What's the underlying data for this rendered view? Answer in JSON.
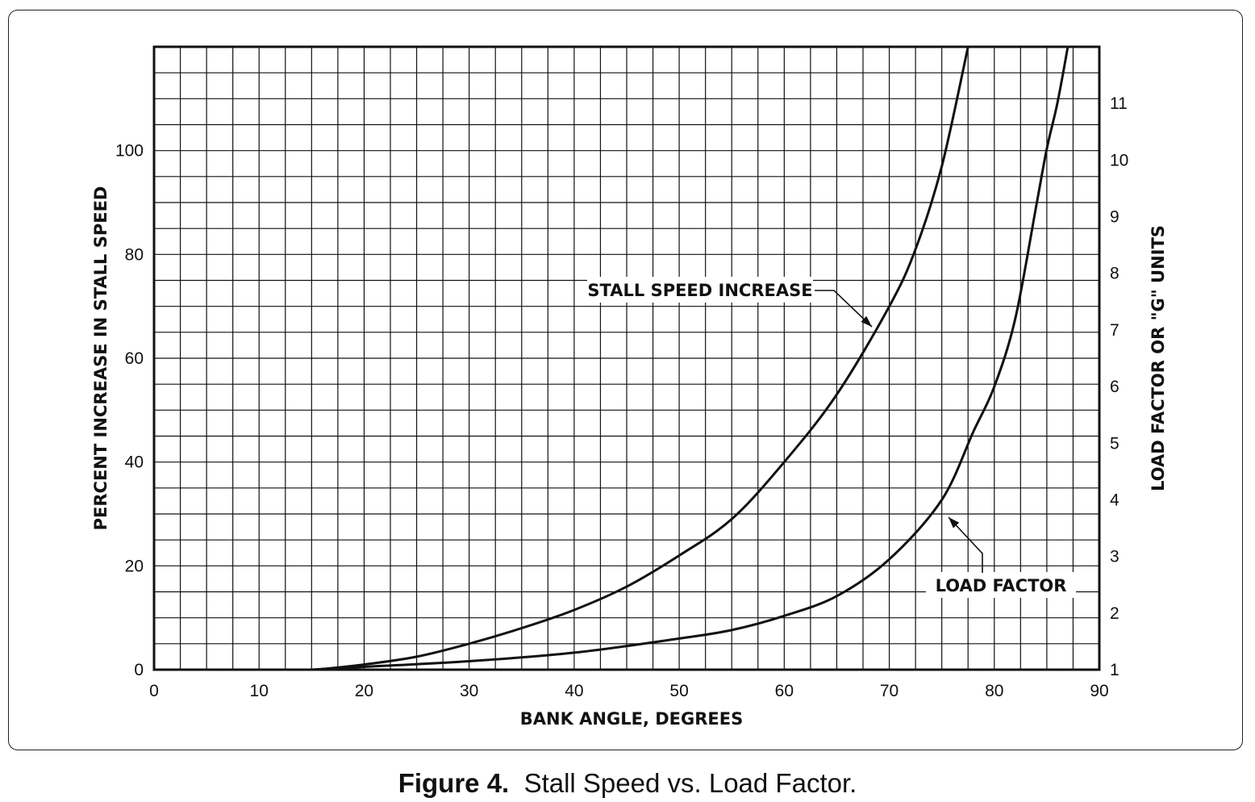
{
  "caption": {
    "label": "Figure 4.",
    "text": "Stall Speed vs. Load Factor."
  },
  "chart_data": {
    "type": "line",
    "x_axis": {
      "label": "BANK ANGLE, DEGREES",
      "range": [
        0,
        90
      ],
      "ticks": [
        "0",
        "10",
        "20",
        "30",
        "40",
        "50",
        "60",
        "70",
        "80",
        "90"
      ]
    },
    "y_axis_left": {
      "label": "PERCENT INCREASE IN STALL SPEED",
      "range": [
        0,
        120
      ],
      "ticks": [
        "0",
        "20",
        "40",
        "60",
        "80",
        "100"
      ]
    },
    "y_axis_right": {
      "label": "LOAD FACTOR OR \"G\" UNITS",
      "range": [
        1,
        12
      ],
      "ticks": [
        "1",
        "2",
        "3",
        "4",
        "5",
        "6",
        "7",
        "8",
        "9",
        "10",
        "11"
      ]
    },
    "grid": true,
    "series": [
      {
        "name": "STALL SPEED INCREASE",
        "axis": "left",
        "x": [
          0,
          10,
          15,
          20,
          25,
          30,
          35,
          40,
          45,
          50,
          55,
          60,
          65,
          70,
          72.5,
          75,
          77.5
        ],
        "y": [
          0,
          0,
          0,
          1,
          2.5,
          5,
          8,
          11.5,
          16,
          22,
          29,
          40,
          53,
          70,
          81,
          97,
          120
        ]
      },
      {
        "name": "LOAD FACTOR",
        "axis": "right",
        "x": [
          0,
          10,
          15,
          20,
          30,
          40,
          50,
          55,
          60,
          65,
          70,
          75,
          78,
          80,
          82,
          84,
          85,
          86,
          87
        ],
        "y": [
          1,
          1,
          1,
          1.05,
          1.15,
          1.3,
          1.55,
          1.7,
          1.95,
          2.3,
          2.95,
          4,
          5.2,
          6,
          7.2,
          9.2,
          10.2,
          11,
          12
        ]
      }
    ]
  }
}
